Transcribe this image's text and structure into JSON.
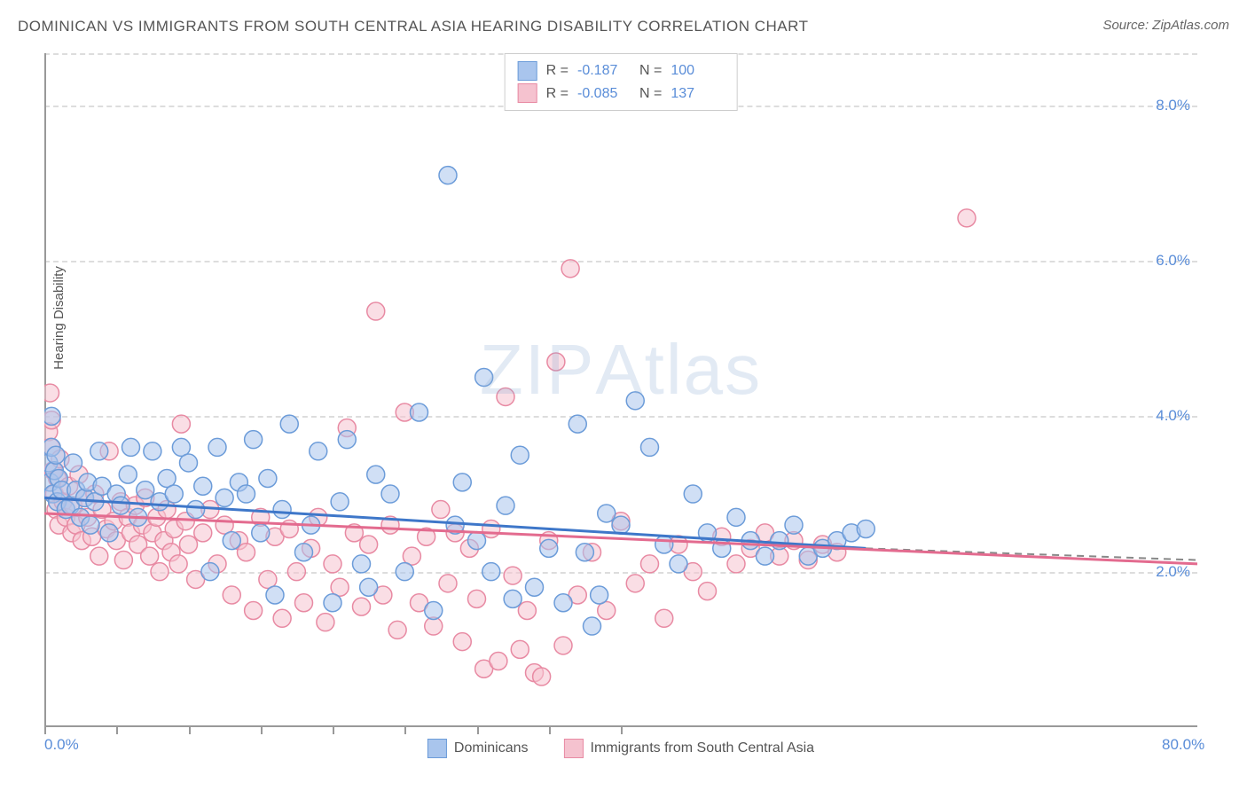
{
  "title": "DOMINICAN VS IMMIGRANTS FROM SOUTH CENTRAL ASIA HEARING DISABILITY CORRELATION CHART",
  "source_label": "Source: ZipAtlas.com",
  "y_axis_label": "Hearing Disability",
  "watermark_bold": "ZIP",
  "watermark_light": "Atlas",
  "chart": {
    "type": "scatter",
    "x_domain": [
      0,
      80
    ],
    "y_domain": [
      0,
      8.67
    ],
    "x_ticks": [
      {
        "v": 0,
        "label": "0.0%"
      },
      {
        "v": 80,
        "label": "80.0%"
      }
    ],
    "y_ticks": [
      {
        "v": 2,
        "label": "2.0%"
      },
      {
        "v": 4,
        "label": "4.0%"
      },
      {
        "v": 6,
        "label": "6.0%"
      },
      {
        "v": 8,
        "label": "8.0%"
      }
    ],
    "x_tick_marks": [
      0,
      5,
      10,
      15,
      20,
      25,
      30,
      35,
      40
    ],
    "gridlines_y": [
      2,
      4,
      6,
      8,
      8.67
    ],
    "background": "#ffffff",
    "grid_color": "#dddddd",
    "axis_color": "#999999",
    "tick_label_color": "#5a8dd8",
    "marker_radius": 10,
    "marker_opacity": 0.55,
    "series": [
      {
        "name": "Dominicans",
        "color_fill": "#a9c5ed",
        "color_stroke": "#6c9cd9",
        "R": "-0.187",
        "N": "100",
        "trend": {
          "x1": 0,
          "y1": 2.95,
          "x2": 57,
          "y2": 2.3,
          "color": "#3e77c9",
          "width": 3,
          "dash_extend_to": 80,
          "dash_y": 2.15
        },
        "points": [
          [
            0.3,
            3.4
          ],
          [
            0.4,
            3.15
          ],
          [
            0.5,
            4.0
          ],
          [
            0.5,
            3.6
          ],
          [
            0.6,
            3.0
          ],
          [
            0.7,
            3.3
          ],
          [
            0.8,
            3.5
          ],
          [
            0.9,
            2.9
          ],
          [
            1.0,
            3.2
          ],
          [
            1.2,
            3.05
          ],
          [
            1.5,
            2.8
          ],
          [
            1.8,
            2.85
          ],
          [
            2.0,
            3.4
          ],
          [
            2.2,
            3.05
          ],
          [
            2.5,
            2.7
          ],
          [
            2.8,
            2.95
          ],
          [
            3.0,
            3.15
          ],
          [
            3.2,
            2.6
          ],
          [
            3.5,
            2.9
          ],
          [
            3.8,
            3.55
          ],
          [
            4.0,
            3.1
          ],
          [
            4.5,
            2.5
          ],
          [
            5.0,
            3.0
          ],
          [
            5.3,
            2.85
          ],
          [
            5.8,
            3.25
          ],
          [
            6.0,
            3.6
          ],
          [
            6.5,
            2.7
          ],
          [
            7.0,
            3.05
          ],
          [
            7.5,
            3.55
          ],
          [
            8.0,
            2.9
          ],
          [
            8.5,
            3.2
          ],
          [
            9.0,
            3.0
          ],
          [
            9.5,
            3.6
          ],
          [
            10.0,
            3.4
          ],
          [
            10.5,
            2.8
          ],
          [
            11.0,
            3.1
          ],
          [
            11.5,
            2.0
          ],
          [
            12.0,
            3.6
          ],
          [
            12.5,
            2.95
          ],
          [
            13.0,
            2.4
          ],
          [
            13.5,
            3.15
          ],
          [
            14.0,
            3.0
          ],
          [
            14.5,
            3.7
          ],
          [
            15.0,
            2.5
          ],
          [
            15.5,
            3.2
          ],
          [
            16.0,
            1.7
          ],
          [
            16.5,
            2.8
          ],
          [
            17.0,
            3.9
          ],
          [
            18.0,
            2.25
          ],
          [
            18.5,
            2.6
          ],
          [
            19.0,
            3.55
          ],
          [
            20.0,
            1.6
          ],
          [
            20.5,
            2.9
          ],
          [
            21.0,
            3.7
          ],
          [
            22.0,
            2.1
          ],
          [
            22.5,
            1.8
          ],
          [
            23.0,
            3.25
          ],
          [
            24.0,
            3.0
          ],
          [
            25.0,
            2.0
          ],
          [
            26.0,
            4.05
          ],
          [
            27.0,
            1.5
          ],
          [
            28.0,
            7.1
          ],
          [
            28.5,
            2.6
          ],
          [
            29.0,
            3.15
          ],
          [
            30.0,
            2.4
          ],
          [
            30.5,
            4.5
          ],
          [
            31.0,
            2.0
          ],
          [
            32.0,
            2.85
          ],
          [
            32.5,
            1.65
          ],
          [
            33.0,
            3.5
          ],
          [
            34.0,
            1.8
          ],
          [
            35.0,
            2.3
          ],
          [
            36.0,
            1.6
          ],
          [
            37.0,
            3.9
          ],
          [
            37.5,
            2.25
          ],
          [
            38.0,
            1.3
          ],
          [
            38.5,
            1.7
          ],
          [
            39.0,
            2.75
          ],
          [
            40.0,
            2.6
          ],
          [
            41.0,
            4.2
          ],
          [
            42.0,
            3.6
          ],
          [
            43.0,
            2.35
          ],
          [
            44.0,
            2.1
          ],
          [
            45.0,
            3.0
          ],
          [
            46.0,
            2.5
          ],
          [
            47.0,
            2.3
          ],
          [
            48.0,
            2.7
          ],
          [
            49.0,
            2.4
          ],
          [
            50.0,
            2.2
          ],
          [
            51.0,
            2.4
          ],
          [
            52.0,
            2.6
          ],
          [
            53.0,
            2.2
          ],
          [
            54.0,
            2.3
          ],
          [
            55.0,
            2.4
          ],
          [
            56.0,
            2.5
          ],
          [
            57.0,
            2.55
          ]
        ]
      },
      {
        "name": "Immigrants from South Central Asia",
        "color_fill": "#f5c2cf",
        "color_stroke": "#e88aa3",
        "R": "-0.085",
        "N": "137",
        "trend": {
          "x1": 0,
          "y1": 2.75,
          "x2": 80,
          "y2": 2.1,
          "color": "#e36b8f",
          "width": 3
        },
        "points": [
          [
            0.3,
            3.8
          ],
          [
            0.4,
            4.3
          ],
          [
            0.45,
            3.6
          ],
          [
            0.5,
            3.95
          ],
          [
            0.6,
            3.3
          ],
          [
            0.7,
            3.0
          ],
          [
            0.8,
            2.8
          ],
          [
            0.9,
            3.2
          ],
          [
            1.0,
            2.6
          ],
          [
            1.1,
            3.45
          ],
          [
            1.3,
            2.9
          ],
          [
            1.5,
            2.7
          ],
          [
            1.7,
            3.1
          ],
          [
            1.9,
            2.5
          ],
          [
            2.0,
            2.85
          ],
          [
            2.2,
            2.6
          ],
          [
            2.4,
            3.25
          ],
          [
            2.6,
            2.4
          ],
          [
            2.8,
            2.95
          ],
          [
            3.0,
            2.7
          ],
          [
            3.3,
            2.45
          ],
          [
            3.5,
            3.0
          ],
          [
            3.8,
            2.2
          ],
          [
            4.0,
            2.8
          ],
          [
            4.3,
            2.55
          ],
          [
            4.5,
            3.55
          ],
          [
            4.8,
            2.65
          ],
          [
            5.0,
            2.4
          ],
          [
            5.3,
            2.9
          ],
          [
            5.5,
            2.15
          ],
          [
            5.8,
            2.7
          ],
          [
            6.0,
            2.5
          ],
          [
            6.3,
            2.85
          ],
          [
            6.5,
            2.35
          ],
          [
            6.8,
            2.6
          ],
          [
            7.0,
            2.95
          ],
          [
            7.3,
            2.2
          ],
          [
            7.5,
            2.5
          ],
          [
            7.8,
            2.7
          ],
          [
            8.0,
            2.0
          ],
          [
            8.3,
            2.4
          ],
          [
            8.5,
            2.8
          ],
          [
            8.8,
            2.25
          ],
          [
            9.0,
            2.55
          ],
          [
            9.3,
            2.1
          ],
          [
            9.5,
            3.9
          ],
          [
            9.8,
            2.65
          ],
          [
            10.0,
            2.35
          ],
          [
            10.5,
            1.9
          ],
          [
            11.0,
            2.5
          ],
          [
            11.5,
            2.8
          ],
          [
            12.0,
            2.1
          ],
          [
            12.5,
            2.6
          ],
          [
            13.0,
            1.7
          ],
          [
            13.5,
            2.4
          ],
          [
            14.0,
            2.25
          ],
          [
            14.5,
            1.5
          ],
          [
            15.0,
            2.7
          ],
          [
            15.5,
            1.9
          ],
          [
            16.0,
            2.45
          ],
          [
            16.5,
            1.4
          ],
          [
            17.0,
            2.55
          ],
          [
            17.5,
            2.0
          ],
          [
            18.0,
            1.6
          ],
          [
            18.5,
            2.3
          ],
          [
            19.0,
            2.7
          ],
          [
            19.5,
            1.35
          ],
          [
            20.0,
            2.1
          ],
          [
            20.5,
            1.8
          ],
          [
            21.0,
            3.85
          ],
          [
            21.5,
            2.5
          ],
          [
            22.0,
            1.55
          ],
          [
            22.5,
            2.35
          ],
          [
            23.0,
            5.35
          ],
          [
            23.5,
            1.7
          ],
          [
            24.0,
            2.6
          ],
          [
            24.5,
            1.25
          ],
          [
            25.0,
            4.05
          ],
          [
            25.5,
            2.2
          ],
          [
            26.0,
            1.6
          ],
          [
            26.5,
            2.45
          ],
          [
            27.0,
            1.3
          ],
          [
            27.5,
            2.8
          ],
          [
            28.0,
            1.85
          ],
          [
            28.5,
            2.5
          ],
          [
            29.0,
            1.1
          ],
          [
            29.5,
            2.3
          ],
          [
            30.0,
            1.65
          ],
          [
            30.5,
            0.75
          ],
          [
            31.0,
            2.55
          ],
          [
            31.5,
            0.85
          ],
          [
            32.0,
            4.25
          ],
          [
            32.5,
            1.95
          ],
          [
            33.0,
            1.0
          ],
          [
            33.5,
            1.5
          ],
          [
            34.0,
            0.7
          ],
          [
            34.5,
            0.65
          ],
          [
            35.0,
            2.4
          ],
          [
            35.5,
            4.7
          ],
          [
            36.0,
            1.05
          ],
          [
            36.5,
            5.9
          ],
          [
            37.0,
            1.7
          ],
          [
            38.0,
            2.25
          ],
          [
            39.0,
            1.5
          ],
          [
            40.0,
            2.65
          ],
          [
            41.0,
            1.85
          ],
          [
            42.0,
            2.1
          ],
          [
            43.0,
            1.4
          ],
          [
            44.0,
            2.35
          ],
          [
            45.0,
            2.0
          ],
          [
            46.0,
            1.75
          ],
          [
            47.0,
            2.45
          ],
          [
            48.0,
            2.1
          ],
          [
            49.0,
            2.3
          ],
          [
            50.0,
            2.5
          ],
          [
            51.0,
            2.2
          ],
          [
            52.0,
            2.4
          ],
          [
            53.0,
            2.15
          ],
          [
            54.0,
            2.35
          ],
          [
            55.0,
            2.25
          ],
          [
            64.0,
            6.55
          ]
        ]
      }
    ]
  },
  "legend_top": [
    {
      "swatch_idx": 0,
      "r_label": "R =",
      "n_label": "N ="
    },
    {
      "swatch_idx": 1,
      "r_label": "R =",
      "n_label": "N ="
    }
  ]
}
